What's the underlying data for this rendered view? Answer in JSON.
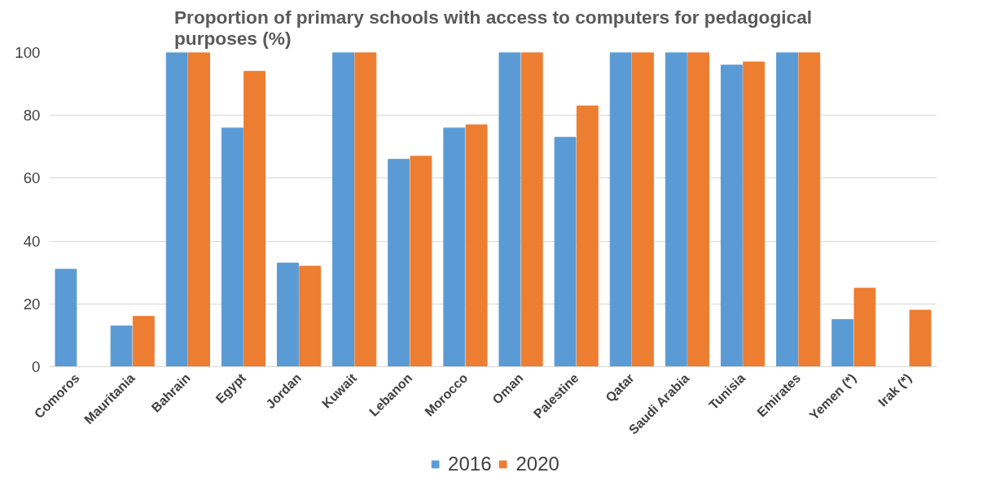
{
  "chart_data": {
    "type": "bar",
    "title": "Proportion of primary schools with access to computers for pedagogical purposes (%)",
    "categories": [
      "Comoros",
      "Mauritania",
      "Bahrain",
      "Egypt",
      "Jordan",
      "Kuwait",
      "Lebanon",
      "Morocco",
      "Oman",
      "Palestine",
      "Qatar",
      "Saudi Arabia",
      "Tunisia",
      "Emirates",
      "Yemen (*)",
      "Irak (*)"
    ],
    "series": [
      {
        "name": "2016",
        "color": "#5b9bd5",
        "values": [
          31,
          13,
          100,
          76,
          33,
          100,
          66,
          76,
          100,
          73,
          100,
          100,
          96,
          100,
          15,
          0
        ]
      },
      {
        "name": "2020",
        "color": "#ed7d31",
        "values": [
          null,
          16,
          100,
          94,
          32,
          100,
          67,
          77,
          100,
          83,
          100,
          100,
          97,
          100,
          25,
          18
        ]
      }
    ],
    "ylim": [
      0,
      100
    ],
    "yticks": [
      0,
      20,
      40,
      60,
      80,
      100
    ],
    "grid": "y",
    "legend": "bottom"
  }
}
